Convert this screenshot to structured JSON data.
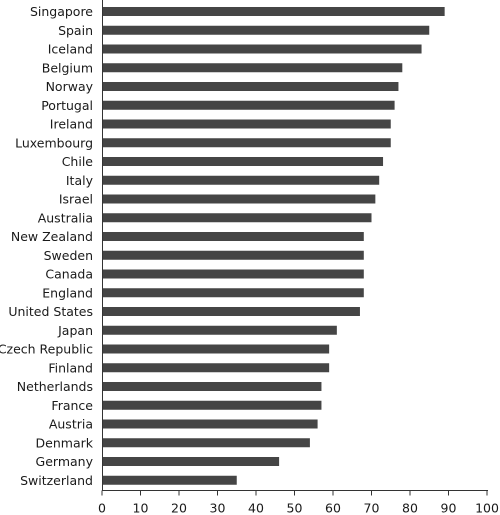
{
  "chart_data": {
    "type": "bar",
    "orientation": "horizontal",
    "title": "",
    "xlabel": "",
    "ylabel": "",
    "categories": [
      "Singapore",
      "Spain",
      "Iceland",
      "Belgium",
      "Norway",
      "Portugal",
      "Ireland",
      "Luxembourg",
      "Chile",
      "Italy",
      "Israel",
      "Australia",
      "New Zealand",
      "Sweden",
      "Canada",
      "England",
      "United States",
      "Japan",
      "Czech Republic",
      "Finland",
      "Netherlands",
      "France",
      "Austria",
      "Denmark",
      "Germany",
      "Switzerland"
    ],
    "values": [
      89,
      85,
      83,
      78,
      77,
      76,
      75,
      75,
      73,
      72,
      71,
      70,
      68,
      68,
      68,
      68,
      67,
      61,
      59,
      59,
      57,
      57,
      56,
      54,
      46,
      35
    ],
    "xlim": [
      0,
      100
    ],
    "xticks": [
      "0",
      "10",
      "20",
      "30",
      "40",
      "50",
      "60",
      "70",
      "80",
      "90",
      "100"
    ],
    "grid": false,
    "bar_color": "#454545"
  }
}
